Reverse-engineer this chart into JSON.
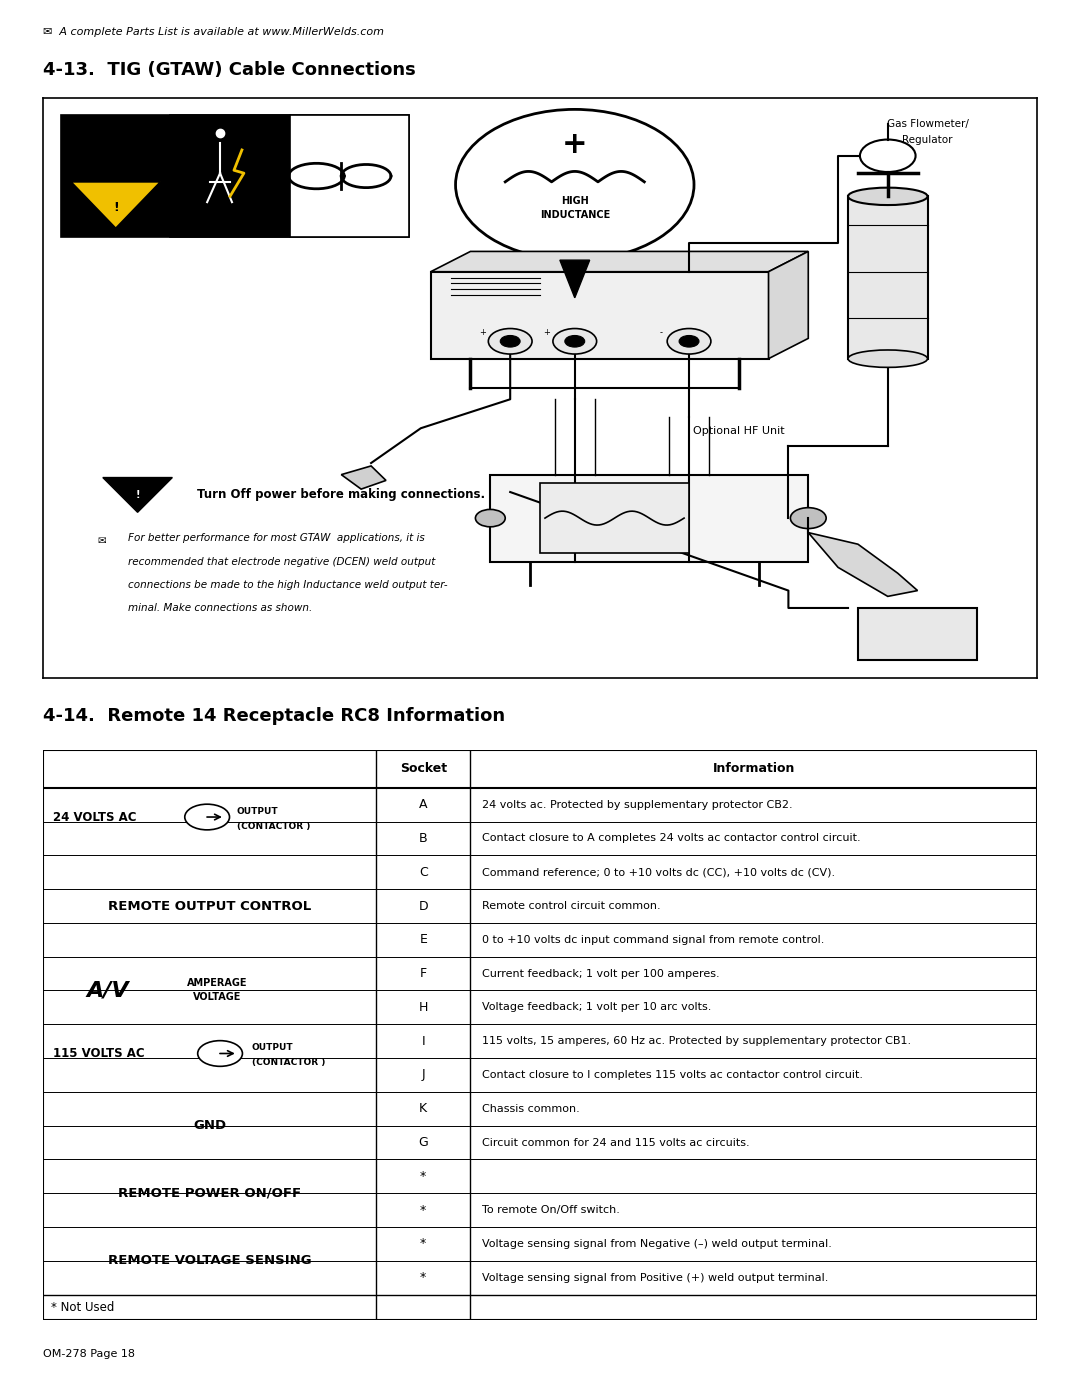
{
  "page_header": "✉  A complete Parts List is available at www.MillerWelds.com",
  "section1_title": "4-13.  TIG (GTAW) Cable Connections",
  "section2_title": "4-14.  Remote 14 Receptacle RC8 Information",
  "warning_text": "Turn Off power before making connections.",
  "note_text_line1": "For better performance for most GTAW  applications, it is",
  "note_text_line2": "recommended that electrode negative (DCEN) weld output",
  "note_text_line3": "connections be made to the high Inductance weld output ter-",
  "note_text_line4": "minal. Make connections as shown.",
  "optional_hf_label": "Optional HF Unit",
  "gas_flowmeter_label1": "Gas Flowmeter/",
  "gas_flowmeter_label2": "Regulator",
  "table_header_socket": "Socket",
  "table_header_info": "Information",
  "table_footnote": "* Not Used",
  "footer": "OM-278 Page 18",
  "bg_color": "#ffffff",
  "text_color": "#000000"
}
